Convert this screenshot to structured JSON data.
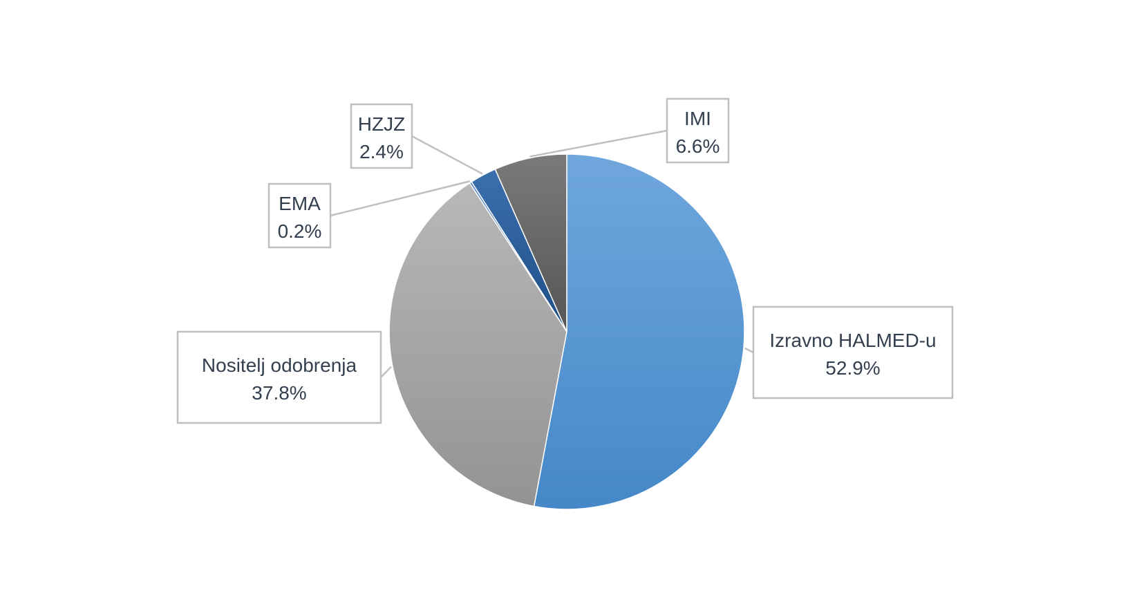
{
  "chart_data": {
    "type": "pie",
    "slices": [
      {
        "name": "Izravno HALMED-u",
        "value": 52.9,
        "label": "52.9%",
        "color": "#5b9bd5"
      },
      {
        "name": "Nositelj odobrenja",
        "value": 37.8,
        "label": "37.8%",
        "color": "#a5a5a5"
      },
      {
        "name": "EMA",
        "value": 0.2,
        "label": "0.2%",
        "color": "#4472c4"
      },
      {
        "name": "HZJZ",
        "value": 2.4,
        "label": "2.4%",
        "color": "#2e5f9a"
      },
      {
        "name": "IMI",
        "value": 6.6,
        "label": "6.6%",
        "color": "#636363"
      }
    ],
    "start_angle_deg": 0,
    "direction": "clockwise",
    "legend": "none",
    "data_labels": "callouts"
  }
}
